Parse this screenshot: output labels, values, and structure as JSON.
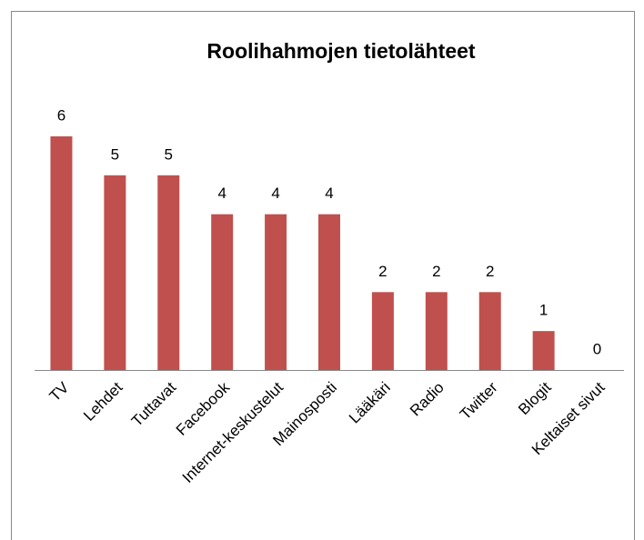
{
  "chart_data": {
    "type": "bar",
    "title": "Roolihahmojen tietolähteet",
    "categories": [
      "TV",
      "Lehdet",
      "Tuttavat",
      "Facebook",
      "Internet-keskustelut",
      "Mainosposti",
      "Lääkäri",
      "Radio",
      "Twitter",
      "Blogit",
      "Keltaiset sivut"
    ],
    "values": [
      6,
      5,
      5,
      4,
      4,
      4,
      2,
      2,
      2,
      1,
      0
    ],
    "color": "#c0504d"
  }
}
